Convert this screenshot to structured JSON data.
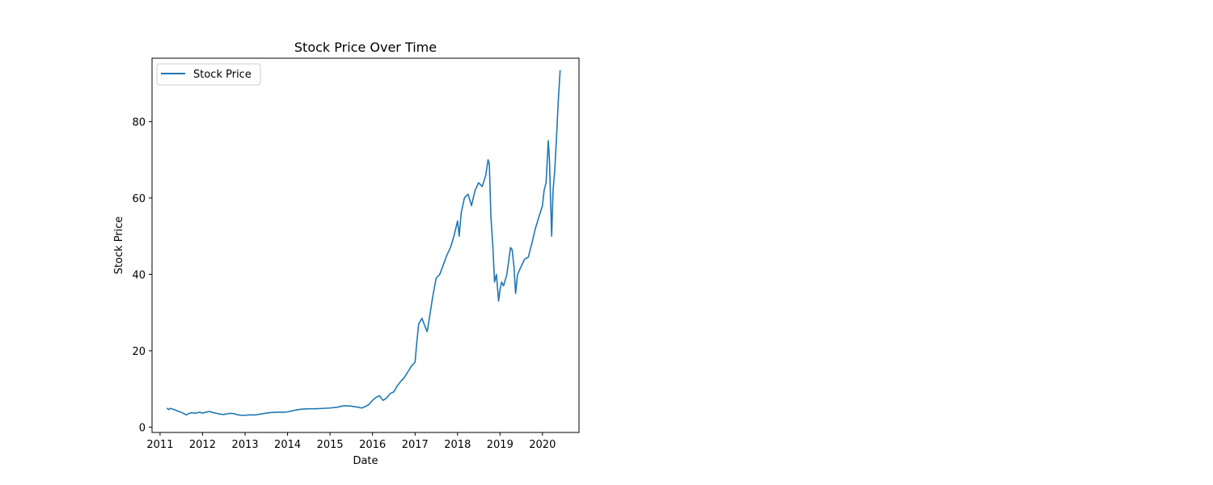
{
  "chart_data": {
    "type": "line",
    "title": "Stock Price Over Time",
    "xlabel": "Date",
    "ylabel": "Stock Price",
    "xlim": [
      "2010-10-24",
      "2020-11-10"
    ],
    "ylim": [
      -1.4,
      96.6
    ],
    "x_ticks": [
      "2011",
      "2012",
      "2013",
      "2014",
      "2015",
      "2016",
      "2017",
      "2018",
      "2019",
      "2020"
    ],
    "y_ticks": [
      0,
      20,
      40,
      60,
      80
    ],
    "grid": false,
    "legend": {
      "position": "upper left",
      "entries": [
        "Stock Price"
      ]
    },
    "series": [
      {
        "name": "Stock Price",
        "color": "#1f77b4",
        "x": [
          "2011-03-01",
          "2011-03-15",
          "2011-04-01",
          "2011-05-01",
          "2011-06-01",
          "2011-07-01",
          "2011-08-01",
          "2011-08-15",
          "2011-09-01",
          "2011-10-01",
          "2011-11-01",
          "2011-12-01",
          "2012-01-01",
          "2012-02-01",
          "2012-03-01",
          "2012-04-01",
          "2012-05-01",
          "2012-06-01",
          "2012-07-01",
          "2012-08-01",
          "2012-09-01",
          "2012-10-01",
          "2012-11-01",
          "2012-12-01",
          "2013-01-01",
          "2013-02-01",
          "2013-04-01",
          "2013-06-01",
          "2013-08-01",
          "2013-10-01",
          "2013-12-01",
          "2014-01-01",
          "2014-03-01",
          "2014-05-01",
          "2014-07-01",
          "2014-09-01",
          "2014-11-01",
          "2015-01-01",
          "2015-03-01",
          "2015-05-01",
          "2015-07-01",
          "2015-09-01",
          "2015-10-01",
          "2015-11-01",
          "2015-12-01",
          "2016-01-01",
          "2016-02-01",
          "2016-03-01",
          "2016-04-01",
          "2016-05-01",
          "2016-06-01",
          "2016-07-01",
          "2016-08-01",
          "2016-09-01",
          "2016-10-01",
          "2016-11-01",
          "2016-12-01",
          "2017-01-01",
          "2017-01-15",
          "2017-02-01",
          "2017-03-01",
          "2017-04-01",
          "2017-04-15",
          "2017-05-01",
          "2017-06-01",
          "2017-07-01",
          "2017-08-01",
          "2017-09-01",
          "2017-10-01",
          "2017-11-01",
          "2017-12-01",
          "2018-01-01",
          "2018-01-15",
          "2018-02-01",
          "2018-03-01",
          "2018-04-01",
          "2018-05-01",
          "2018-06-01",
          "2018-07-01",
          "2018-08-01",
          "2018-09-01",
          "2018-09-20",
          "2018-10-01",
          "2018-10-15",
          "2018-11-01",
          "2018-11-15",
          "2018-12-01",
          "2018-12-20",
          "2019-01-01",
          "2019-01-15",
          "2019-02-01",
          "2019-03-01",
          "2019-04-01",
          "2019-04-15",
          "2019-05-01",
          "2019-05-15",
          "2019-06-01",
          "2019-07-01",
          "2019-08-01",
          "2019-09-01",
          "2019-10-01",
          "2019-11-01",
          "2019-12-01",
          "2020-01-01",
          "2020-01-15",
          "2020-02-01",
          "2020-02-20",
          "2020-03-01",
          "2020-03-10",
          "2020-03-20",
          "2020-04-01",
          "2020-04-15",
          "2020-05-01",
          "2020-05-15",
          "2020-06-01"
        ],
        "y": [
          5.0,
          4.6,
          4.9,
          4.6,
          4.2,
          3.9,
          3.4,
          3.2,
          3.5,
          3.8,
          3.6,
          3.9,
          3.7,
          3.9,
          4.1,
          3.8,
          3.6,
          3.4,
          3.3,
          3.5,
          3.6,
          3.5,
          3.2,
          3.1,
          3.1,
          3.2,
          3.2,
          3.5,
          3.8,
          3.9,
          3.9,
          4.0,
          4.4,
          4.7,
          4.8,
          4.8,
          4.9,
          5.0,
          5.2,
          5.6,
          5.5,
          5.2,
          5.0,
          5.4,
          5.9,
          7.0,
          7.8,
          8.2,
          7.0,
          7.6,
          8.8,
          9.2,
          10.8,
          12.0,
          13.0,
          14.5,
          16.0,
          17.0,
          22.0,
          27.0,
          28.5,
          26.0,
          25.0,
          28.0,
          34.0,
          39.0,
          40.0,
          42.5,
          45.0,
          47.0,
          50.0,
          54.0,
          50.0,
          56.0,
          60.0,
          61.0,
          58.0,
          62.0,
          64.0,
          63.0,
          66.0,
          70.0,
          69.0,
          55.0,
          47.0,
          38.0,
          40.0,
          33.0,
          36.0,
          38.0,
          37.0,
          40.0,
          47.0,
          46.5,
          42.0,
          35.0,
          40.0,
          42.0,
          44.0,
          44.5,
          48.0,
          52.0,
          55.0,
          58.0,
          62.0,
          64.0,
          75.0,
          70.0,
          60.0,
          50.0,
          62.0,
          67.0,
          76.0,
          85.0,
          93.5
        ]
      }
    ]
  }
}
